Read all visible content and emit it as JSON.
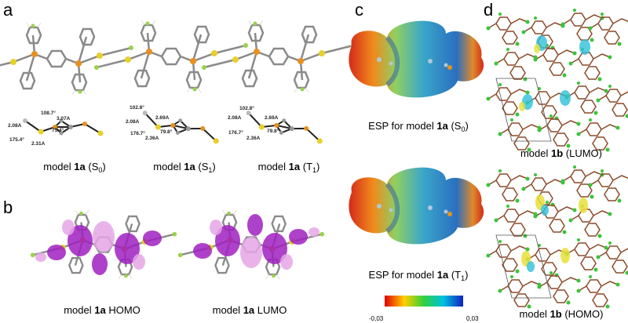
{
  "panels": {
    "a": {
      "label": "a",
      "models": [
        {
          "caption": [
            "model ",
            "1a",
            " (S",
            "0",
            ")"
          ],
          "annotations": [
            "108.7°",
            "3.07A",
            "2.08A",
            "75.4°",
            "175.4°",
            "2.31A"
          ]
        },
        {
          "caption": [
            "model ",
            "1a",
            " (S",
            "1",
            ")"
          ],
          "annotations": [
            "102.8°",
            "2.69A",
            "2.08A",
            "176.7°",
            "79.8°",
            "2.36A"
          ]
        },
        {
          "caption": [
            "model ",
            "1a",
            " (T",
            "1",
            ")"
          ],
          "annotations": [
            "102.8°",
            "2.08A",
            "2.69A",
            "176.7°",
            "79.8°",
            "2.36A"
          ]
        }
      ]
    },
    "b": {
      "label": "b",
      "captions": [
        [
          "model ",
          "1a",
          " HOMO"
        ],
        [
          "model ",
          "1a",
          " LUMO"
        ]
      ]
    },
    "c": {
      "label": "c",
      "captions": [
        [
          "ESP for model ",
          "1a",
          " (S",
          "0",
          ")"
        ],
        [
          "ESP for model ",
          "1a",
          " (T",
          "1",
          ")"
        ]
      ],
      "colorbar_ticks": [
        "-0,03",
        "0,03"
      ]
    },
    "d": {
      "label": "d",
      "captions": [
        [
          "model ",
          "1b",
          " (LUMO)"
        ],
        [
          "model ",
          "1b",
          " (HOMO)"
        ]
      ]
    }
  }
}
